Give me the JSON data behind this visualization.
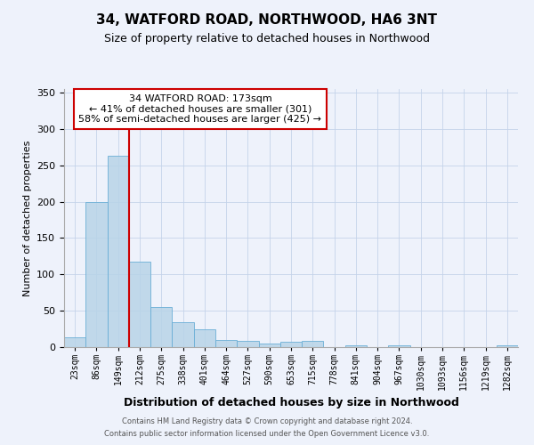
{
  "title": "34, WATFORD ROAD, NORTHWOOD, HA6 3NT",
  "subtitle": "Size of property relative to detached houses in Northwood",
  "xlabel": "Distribution of detached houses by size in Northwood",
  "ylabel": "Number of detached properties",
  "footnote1": "Contains HM Land Registry data © Crown copyright and database right 2024.",
  "footnote2": "Contains public sector information licensed under the Open Government Licence v3.0.",
  "bin_labels": [
    "23sqm",
    "86sqm",
    "149sqm",
    "212sqm",
    "275sqm",
    "338sqm",
    "401sqm",
    "464sqm",
    "527sqm",
    "590sqm",
    "653sqm",
    "715sqm",
    "778sqm",
    "841sqm",
    "904sqm",
    "967sqm",
    "1030sqm",
    "1093sqm",
    "1156sqm",
    "1219sqm",
    "1282sqm"
  ],
  "bar_heights": [
    13,
    200,
    263,
    118,
    55,
    34,
    24,
    10,
    8,
    5,
    7,
    9,
    0,
    3,
    0,
    2,
    0,
    0,
    0,
    0,
    2
  ],
  "bar_color": "#b8d4e8",
  "bar_edgecolor": "#6aaed6",
  "bar_alpha": 0.85,
  "red_line_bin_index": 2,
  "vline_color": "#cc0000",
  "ylim": [
    0,
    355
  ],
  "yticks": [
    0,
    50,
    100,
    150,
    200,
    250,
    300,
    350
  ],
  "annotation_title": "34 WATFORD ROAD: 173sqm",
  "annotation_line1": "← 41% of detached houses are smaller (301)",
  "annotation_line2": "58% of semi-detached houses are larger (425) →",
  "annotation_box_facecolor": "#ffffff",
  "annotation_box_edgecolor": "#cc0000",
  "background_color": "#eef2fb",
  "plot_bg_color": "#eef2fb",
  "grid_color": "#c5d3ea",
  "title_fontsize": 11,
  "subtitle_fontsize": 9,
  "ylabel_fontsize": 8,
  "xlabel_fontsize": 9,
  "tick_fontsize": 8,
  "xtick_fontsize": 7,
  "footnote_fontsize": 6,
  "annotation_fontsize": 8
}
